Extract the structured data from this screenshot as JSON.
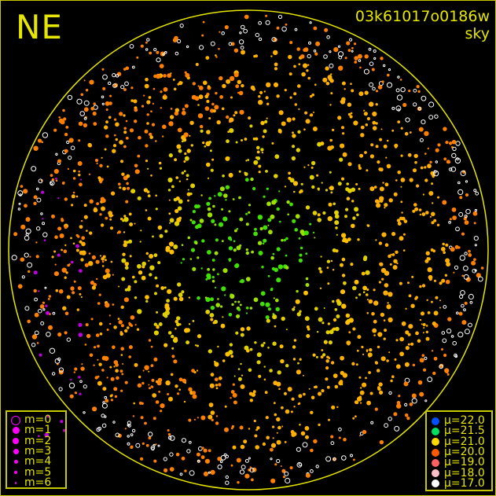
{
  "corner_label": "NE",
  "image_id": "03k61017o0186w",
  "image_type": "sky",
  "colors": {
    "frame": "#c8c800",
    "horizon": "#e6e600",
    "text": "#e6e600",
    "magnitude_marker": "#ff00ff"
  },
  "magnitude_legend": [
    {
      "label": "m=0",
      "symbol": "ring"
    },
    {
      "label": "m=1",
      "symbol": "dot"
    },
    {
      "label": "m=2",
      "symbol": "dot"
    },
    {
      "label": "m=3",
      "symbol": "dot"
    },
    {
      "label": "m=4",
      "symbol": "dot"
    },
    {
      "label": "m=5",
      "symbol": "dot"
    },
    {
      "label": "m=6",
      "symbol": "dot"
    }
  ],
  "brightness_legend": [
    {
      "label": "μ=22.0",
      "color": "#0050ff"
    },
    {
      "label": "μ=21.5",
      "color": "#00e060"
    },
    {
      "label": "μ=21.0",
      "color": "#ffd800"
    },
    {
      "label": "μ=20.0",
      "color": "#ff5a00"
    },
    {
      "label": "μ=19.0",
      "color": "#ff6060"
    },
    {
      "label": "μ=18.0",
      "color": "#ffc0c8"
    },
    {
      "label": "μ=17.0",
      "color": "#ffffff"
    }
  ]
}
